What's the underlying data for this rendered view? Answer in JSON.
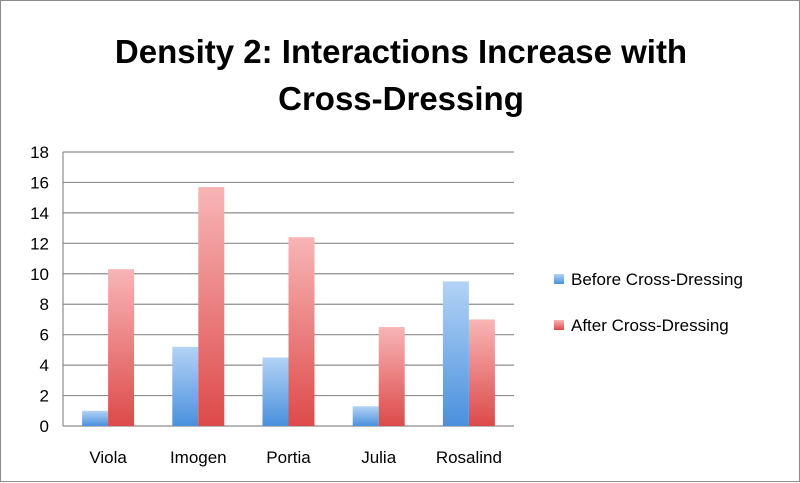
{
  "chart_data": {
    "type": "bar",
    "title_lines": [
      "Density 2: Interactions Increase with",
      "Cross-Dressing"
    ],
    "categories": [
      "Viola",
      "Imogen",
      "Portia",
      "Julia",
      "Rosalind"
    ],
    "series": [
      {
        "name": "Before Cross-Dressing",
        "values": [
          1,
          5.2,
          4.5,
          1.3,
          9.5
        ],
        "color_top": "#b3d3f6",
        "color_bottom": "#4a90dd"
      },
      {
        "name": "After Cross-Dressing",
        "values": [
          10.3,
          15.7,
          12.4,
          6.5,
          7
        ],
        "color_top": "#f8b5b6",
        "color_bottom": "#dd4a4a"
      }
    ],
    "ylim": [
      0,
      18
    ],
    "yticks": [
      "0",
      "2",
      "4",
      "6",
      "8",
      "10",
      "12",
      "14",
      "16",
      "18"
    ],
    "grid": true,
    "legend_position": "right"
  }
}
